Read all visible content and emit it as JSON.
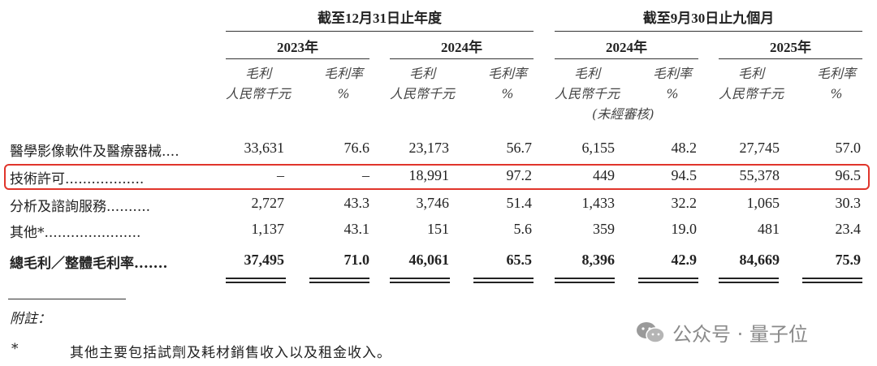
{
  "header": {
    "group_fy": "截至12月31日止年度",
    "group_9m": "截至9月30日止九個月",
    "years": [
      "2023年",
      "2024年",
      "2024年",
      "2025年"
    ],
    "gp_label": "毛利",
    "gp_unit": "人民幣千元",
    "gm_label": "毛利率",
    "gm_unit": "%",
    "unaudited": "(未經審核)"
  },
  "rows": [
    {
      "label": "醫學影像軟件及醫療器械....",
      "values": [
        "33,631",
        "76.6",
        "23,173",
        "56.7",
        "6,155",
        "48.2",
        "27,745",
        "57.0"
      ],
      "bold": false
    },
    {
      "label": "技術許可..................",
      "values": [
        "–",
        "–",
        "18,991",
        "97.2",
        "449",
        "94.5",
        "55,378",
        "96.5"
      ],
      "bold": false,
      "highlighted": true
    },
    {
      "label": "分析及諮詢服務..........",
      "values": [
        "2,727",
        "43.3",
        "3,746",
        "51.4",
        "1,433",
        "32.2",
        "1,065",
        "30.3"
      ],
      "bold": false
    },
    {
      "label": "其他*......................",
      "values": [
        "1,137",
        "43.1",
        "151",
        "5.6",
        "359",
        "19.0",
        "481",
        "23.4"
      ],
      "bold": false
    },
    {
      "label": "總毛利／整體毛利率.......",
      "values": [
        "37,495",
        "71.0",
        "46,061",
        "65.5",
        "8,396",
        "42.9",
        "84,669",
        "75.9"
      ],
      "bold": true
    }
  ],
  "notes": {
    "title": "附註：",
    "items": [
      {
        "marker": "*",
        "text": "其他主要包括試劑及耗材銷售收入以及租金收入。"
      }
    ]
  },
  "watermark": {
    "text": "公众号 · 量子位",
    "icon": "wechat-icon"
  },
  "colors": {
    "highlight": "#e0352b"
  }
}
